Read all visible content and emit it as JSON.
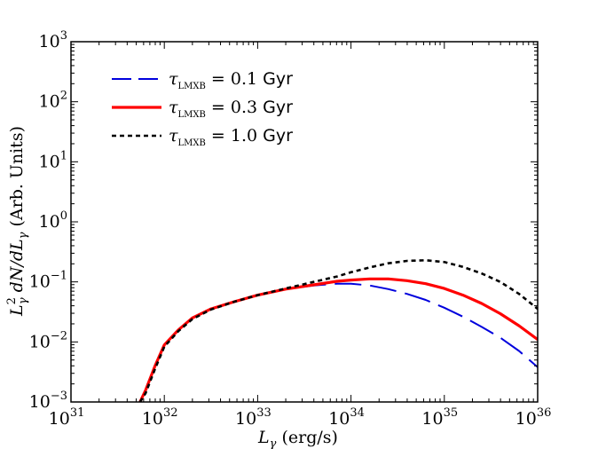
{
  "chart_data": {
    "type": "line",
    "title": "",
    "xlabel": "L_γ (erg/s)",
    "ylabel": "L_γ² dN/dL_γ (Arb. Units)",
    "xscale": "log",
    "yscale": "log",
    "xlim_exp": [
      31,
      36
    ],
    "ylim_exp": [
      -3,
      3
    ],
    "x_ticks": [
      {
        "base": "10",
        "exp": "31",
        "value": 31
      },
      {
        "base": "10",
        "exp": "32",
        "value": 32
      },
      {
        "base": "10",
        "exp": "33",
        "value": 33
      },
      {
        "base": "10",
        "exp": "34",
        "value": 34
      },
      {
        "base": "10",
        "exp": "35",
        "value": 35
      },
      {
        "base": "10",
        "exp": "36",
        "value": 36
      }
    ],
    "y_ticks": [
      {
        "base": "10",
        "exp": "−3",
        "value": -3
      },
      {
        "base": "10",
        "exp": "−2",
        "value": -2
      },
      {
        "base": "10",
        "exp": "−1",
        "value": -1
      },
      {
        "base": "10",
        "exp": "0",
        "value": 0
      },
      {
        "base": "10",
        "exp": "1",
        "value": 1
      },
      {
        "base": "10",
        "exp": "2",
        "value": 2
      },
      {
        "base": "10",
        "exp": "3",
        "value": 3
      }
    ],
    "legend": {
      "position": "upper-left"
    },
    "series": [
      {
        "name": "τ_LMXB = 0.1 Gyr",
        "tau_symbol": "τ",
        "tau_sub": "LMXB",
        "value_text": "= 0.1",
        "unit": "Gyr",
        "color": "#0000dd",
        "style": "long-dash",
        "log_x": [
          31.74,
          31.8,
          31.9,
          32.0,
          32.15,
          32.3,
          32.5,
          32.75,
          33.0,
          33.3,
          33.6,
          33.85,
          34.0,
          34.2,
          34.4,
          34.6,
          34.8,
          35.0,
          35.2,
          35.4,
          35.6,
          35.8,
          36.0
        ],
        "log_y": [
          -3.0,
          -2.8,
          -2.4,
          -2.05,
          -1.8,
          -1.6,
          -1.45,
          -1.33,
          -1.22,
          -1.12,
          -1.06,
          -1.03,
          -1.03,
          -1.06,
          -1.12,
          -1.2,
          -1.3,
          -1.43,
          -1.58,
          -1.75,
          -1.93,
          -2.15,
          -2.42
        ]
      },
      {
        "name": "τ_LMXB = 0.3 Gyr",
        "tau_symbol": "τ",
        "tau_sub": "LMXB",
        "value_text": "= 0.3",
        "unit": "Gyr",
        "color": "#ff0000",
        "style": "solid",
        "log_x": [
          31.74,
          31.8,
          31.9,
          32.0,
          32.15,
          32.3,
          32.5,
          32.75,
          33.0,
          33.3,
          33.6,
          33.85,
          34.0,
          34.2,
          34.4,
          34.6,
          34.8,
          35.0,
          35.2,
          35.4,
          35.6,
          35.8,
          36.0
        ],
        "log_y": [
          -3.0,
          -2.8,
          -2.4,
          -2.05,
          -1.8,
          -1.6,
          -1.45,
          -1.33,
          -1.22,
          -1.12,
          -1.05,
          -0.99,
          -0.97,
          -0.95,
          -0.95,
          -0.98,
          -1.03,
          -1.11,
          -1.22,
          -1.36,
          -1.53,
          -1.73,
          -1.96
        ]
      },
      {
        "name": "τ_LMXB = 1.0 Gyr",
        "tau_symbol": "τ",
        "tau_sub": "LMXB",
        "value_text": "= 1.0",
        "unit": "Gyr",
        "color": "#000000",
        "style": "short-dash",
        "log_x": [
          31.74,
          31.8,
          31.9,
          32.0,
          32.15,
          32.3,
          32.5,
          32.75,
          33.0,
          33.3,
          33.6,
          33.85,
          34.0,
          34.2,
          34.4,
          34.6,
          34.8,
          35.0,
          35.2,
          35.4,
          35.6,
          35.8,
          36.0
        ],
        "log_y": [
          -3.0,
          -2.85,
          -2.45,
          -2.08,
          -1.82,
          -1.62,
          -1.46,
          -1.33,
          -1.22,
          -1.11,
          -1.0,
          -0.91,
          -0.84,
          -0.76,
          -0.69,
          -0.65,
          -0.64,
          -0.67,
          -0.75,
          -0.86,
          -1.0,
          -1.2,
          -1.45
        ]
      }
    ]
  }
}
